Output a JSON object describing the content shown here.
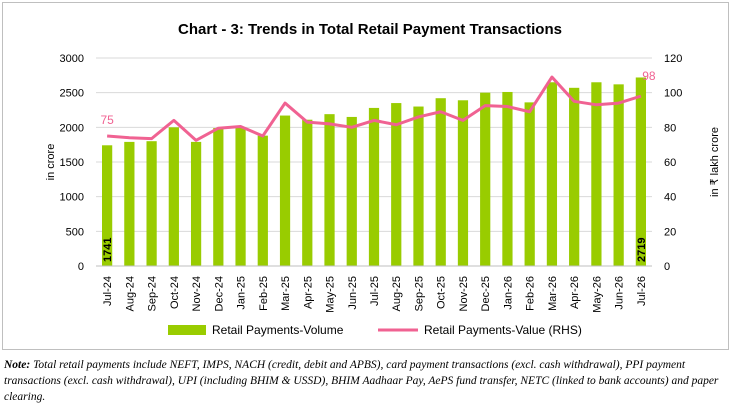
{
  "chart_data": {
    "type": "bar",
    "title": "Chart - 3: Trends in Total Retail Payment Transactions",
    "categories": [
      "Jul-24",
      "Aug-24",
      "Sep-24",
      "Oct-24",
      "Nov-24",
      "Dec-24",
      "Jan-25",
      "Feb-25",
      "Mar-25",
      "Apr-25",
      "May-25",
      "Jun-25",
      "Jul-25",
      "Aug-25",
      "Sep-25",
      "Oct-25",
      "Nov-25",
      "Dec-25",
      "Jan-26",
      "Feb-26",
      "Mar-26",
      "Apr-26",
      "May-26",
      "Jun-26",
      "Jul-26"
    ],
    "series": [
      {
        "name": "Retail Payments-Volume",
        "type": "bar",
        "axis": "left",
        "color": "#99cc00",
        "values": [
          1741,
          1790,
          1800,
          2000,
          1790,
          1990,
          2000,
          1880,
          2170,
          2110,
          2190,
          2150,
          2280,
          2350,
          2300,
          2420,
          2390,
          2500,
          2510,
          2360,
          2650,
          2570,
          2650,
          2620,
          2719
        ]
      },
      {
        "name": "Retail Payments-Value (RHS)",
        "type": "line",
        "axis": "right",
        "color": "#f06292",
        "values": [
          75,
          74,
          73.5,
          84,
          72.5,
          79.5,
          80.5,
          75,
          94,
          83,
          82,
          80,
          84,
          81.5,
          86,
          89,
          84,
          92.5,
          92,
          89,
          109,
          95,
          93,
          94,
          98
        ]
      }
    ],
    "y_left": {
      "label": "in crore",
      "min": 0,
      "max": 3000,
      "ticks": [
        "0",
        "500",
        "1000",
        "1500",
        "2000",
        "2500",
        "3000"
      ]
    },
    "y_right": {
      "label": "in ₹ lakh crore",
      "min": 0,
      "max": 120,
      "ticks": [
        "0",
        "20",
        "40",
        "60",
        "80",
        "100",
        "120"
      ]
    },
    "bar_labels": {
      "first": "1741",
      "last": "2719"
    },
    "line_labels": {
      "first": "75",
      "last": "98"
    },
    "grid": true,
    "legend_position": "bottom"
  },
  "note": {
    "label": "Note:",
    "text": " Total retail payments include NEFT, IMPS, NACH (credit, debit and APBS), card payment transactions (excl. cash withdrawal), PPI payment transactions (excl. cash withdrawal), UPI (including BHIM & USSD), BHIM Aadhaar Pay, AePS fund transfer, NETC (linked to bank accounts) and paper clearing."
  }
}
